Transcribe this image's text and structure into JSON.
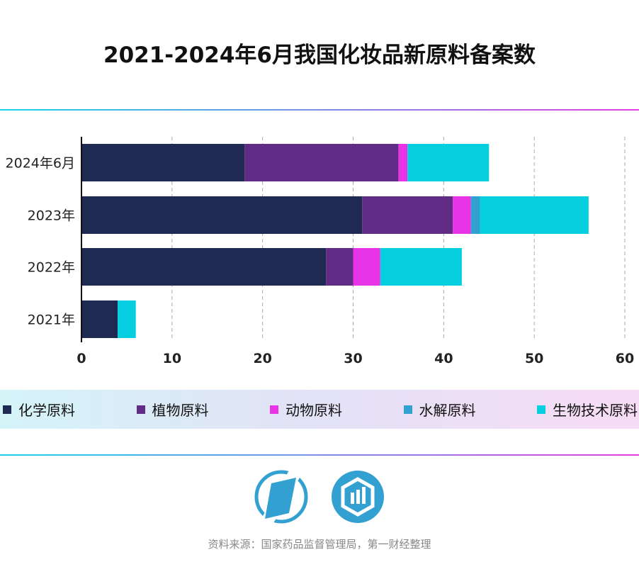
{
  "chart_data": {
    "type": "bar",
    "orientation": "horizontal",
    "stacked": true,
    "title": "2021-2024年6月我国化妆品新原料备案数",
    "categories": [
      "2024年6月",
      "2023年",
      "2022年",
      "2021年"
    ],
    "series": [
      {
        "name": "化学原料",
        "color": "#1e2a52",
        "values": [
          18,
          31,
          27,
          4
        ]
      },
      {
        "name": "植物原料",
        "color": "#612c86",
        "values": [
          17,
          10,
          3,
          0
        ]
      },
      {
        "name": "动物原料",
        "color": "#e933e6",
        "values": [
          1,
          2,
          3,
          0
        ]
      },
      {
        "name": "水解原料",
        "color": "#33a0d2",
        "values": [
          0,
          1,
          0,
          0
        ]
      },
      {
        "name": "生物技术原料",
        "color": "#06cfe0",
        "values": [
          9,
          12,
          9,
          2
        ]
      }
    ],
    "xlim": [
      0,
      60
    ],
    "xticks": [
      "0",
      "10",
      "20",
      "30",
      "40",
      "50",
      "60"
    ],
    "grid": "vertical dashed",
    "legend": "bottom"
  },
  "source": "资料来源：国家药品监督管理局，第一财经整理",
  "logos": [
    "yicai-logo",
    "data-logo"
  ],
  "accent": "#33a0d2"
}
